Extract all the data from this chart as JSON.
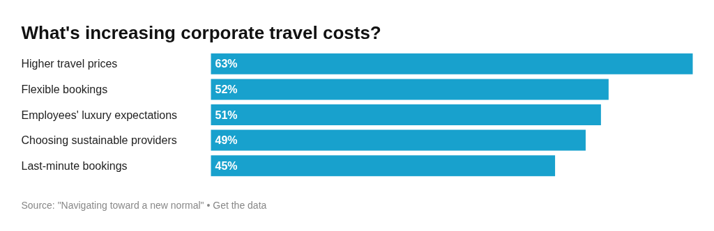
{
  "chart_data": {
    "type": "bar",
    "orientation": "horizontal",
    "title": "What's increasing corporate travel costs?",
    "categories": [
      "Higher travel prices",
      "Flexible bookings",
      "Employees' luxury expectations",
      "Choosing sustainable providers",
      "Last-minute bookings"
    ],
    "values": [
      63,
      52,
      51,
      49,
      45
    ],
    "color": "#18a1cd",
    "xlim": [
      0,
      63
    ],
    "data_labels": true,
    "value_labels": [
      "63%",
      "52%",
      "51%",
      "49%",
      "45%"
    ],
    "grid": false,
    "annotations": [
      "Source: \"Navigating toward a new normal\" • Get the data"
    ]
  }
}
